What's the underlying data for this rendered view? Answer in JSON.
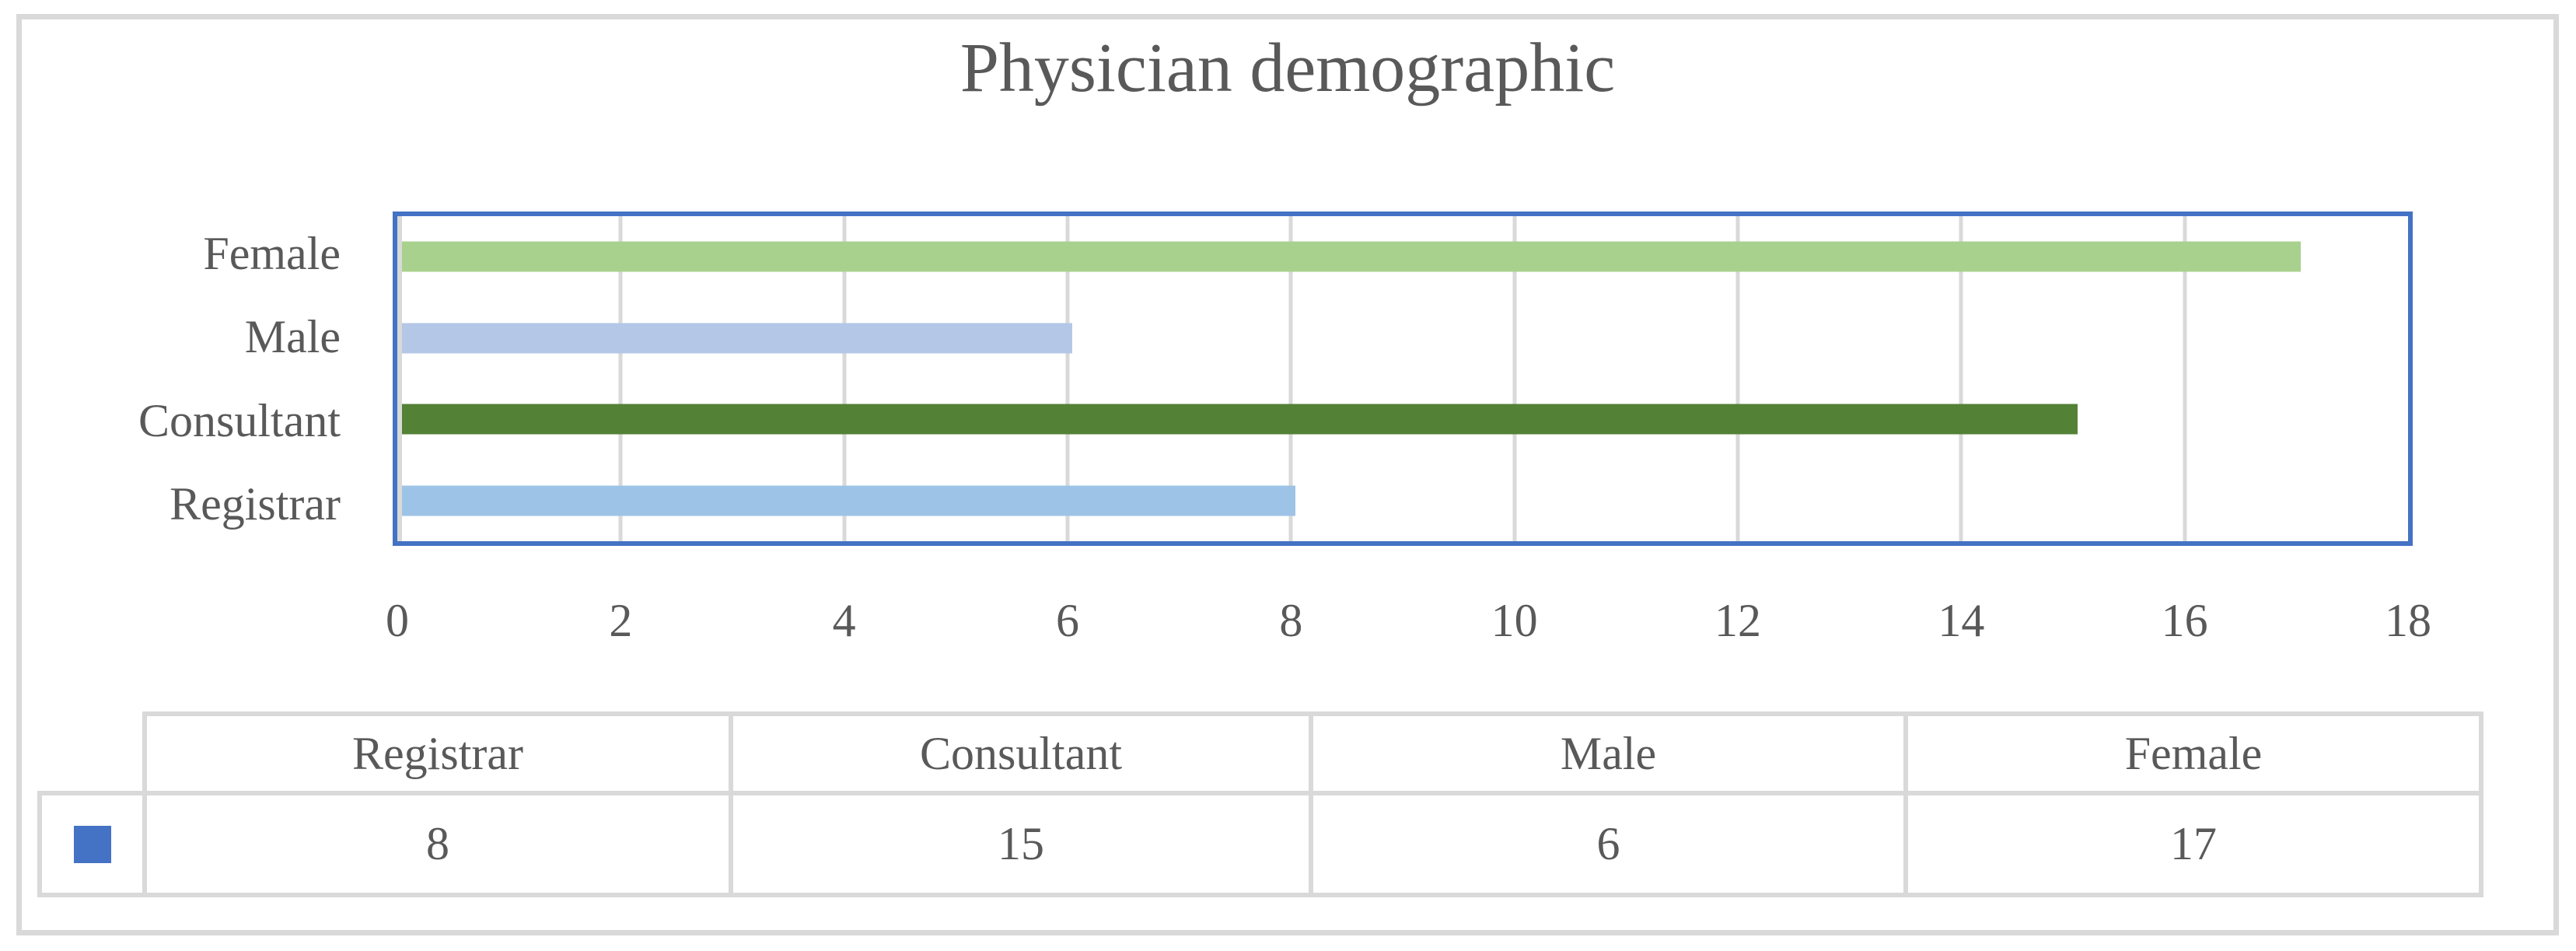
{
  "chart_data": {
    "type": "bar",
    "orientation": "horizontal",
    "title": "Physician demographic",
    "categories": [
      "Female",
      "Male",
      "Consultant",
      "Registrar"
    ],
    "values": [
      17,
      6,
      15,
      8
    ],
    "bar_colors": [
      "#A9D18E",
      "#B4C7E7",
      "#538135",
      "#9DC3E6"
    ],
    "xlabel": "",
    "ylabel": "",
    "xlim": [
      0,
      18
    ],
    "xticks": [
      0,
      2,
      4,
      6,
      8,
      10,
      12,
      14,
      16,
      18
    ],
    "grid": true,
    "legend_marker_color": "#4472C4",
    "table": {
      "columns": [
        "Registrar",
        "Consultant",
        "Male",
        "Female"
      ],
      "values": [
        8,
        15,
        6,
        17
      ]
    }
  },
  "colors": {
    "background": "#FFFFFF",
    "frame_border": "#D9D9D9",
    "plot_border": "#4472C4",
    "gridline": "#D9D9D9",
    "axis_line": "#D9D9D9",
    "table_border": "#D9D9D9",
    "text": "#595959",
    "legend_marker": "#4472C4"
  }
}
